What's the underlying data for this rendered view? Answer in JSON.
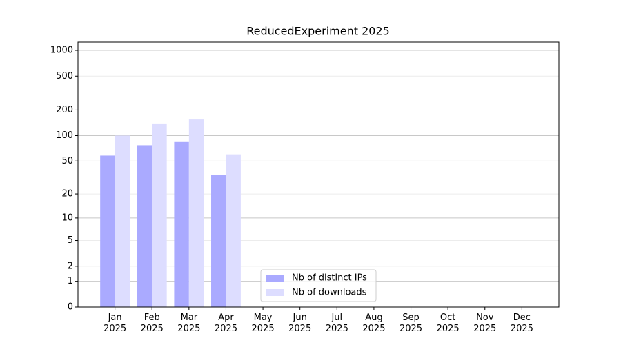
{
  "chart_data": {
    "type": "bar",
    "title": "ReducedExperiment 2025",
    "categories": [
      "Jan\n2025",
      "Feb\n2025",
      "Mar\n2025",
      "Apr\n2025",
      "May\n2025",
      "Jun\n2025",
      "Jul\n2025",
      "Aug\n2025",
      "Sep\n2025",
      "Oct\n2025",
      "Nov\n2025",
      "Dec\n2025"
    ],
    "series": [
      {
        "name": "Nb of distinct IPs",
        "color": "#aaaaff",
        "values": [
          58,
          77,
          84,
          34,
          null,
          null,
          null,
          null,
          null,
          null,
          null,
          null
        ]
      },
      {
        "name": "Nb of downloads",
        "color": "#ddddff",
        "values": [
          100,
          139,
          155,
          60,
          null,
          null,
          null,
          null,
          null,
          null,
          null,
          null
        ]
      }
    ],
    "yscale": "log1p",
    "ylim": [
      0,
      1250
    ],
    "yticks": [
      0,
      1,
      2,
      5,
      10,
      20,
      50,
      100,
      200,
      500,
      1000
    ],
    "grid": true,
    "legend": "lower center"
  }
}
